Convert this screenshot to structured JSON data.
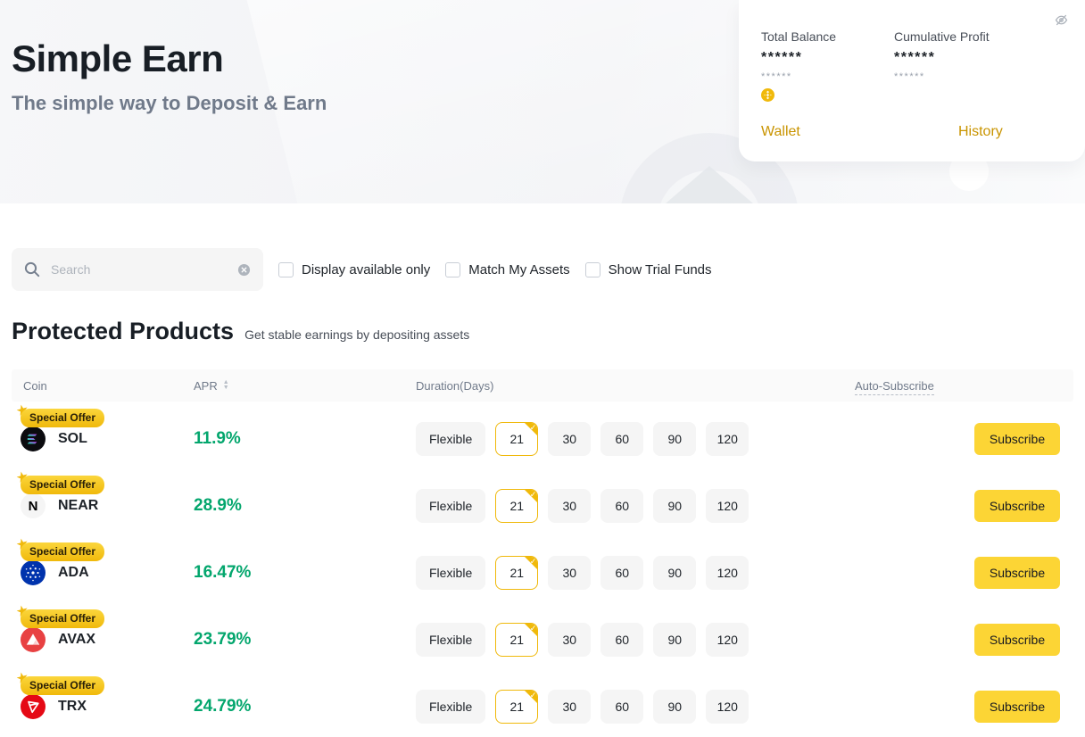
{
  "banner": {
    "title": "Simple Earn",
    "subtitle": "The simple way to Deposit & Earn",
    "card": {
      "total_balance_label": "Total Balance",
      "total_balance_value": "******",
      "total_balance_sub": "******",
      "cumulative_profit_label": "Cumulative Profit",
      "cumulative_profit_value": "******",
      "cumulative_profit_sub": "******",
      "wallet_link": "Wallet",
      "history_link": "History"
    }
  },
  "filters": {
    "search_placeholder": "Search",
    "search_value": "",
    "checkboxes": [
      {
        "label": "Display available only",
        "checked": false
      },
      {
        "label": "Match My Assets",
        "checked": false
      },
      {
        "label": "Show Trial Funds",
        "checked": false
      }
    ]
  },
  "section": {
    "title": "Protected Products",
    "subtitle": "Get stable earnings by depositing assets"
  },
  "table": {
    "headers": {
      "coin": "Coin",
      "apr": "APR",
      "duration": "Duration(Days)",
      "auto_subscribe": "Auto-Subscribe"
    },
    "rows": [
      {
        "badge": "Special Offer",
        "coin": "SOL",
        "apr": "11.9%",
        "durations": [
          "Flexible",
          "21",
          "30",
          "60",
          "90",
          "120"
        ],
        "selected_duration": "21",
        "subscribe_label": "Subscribe"
      },
      {
        "badge": "Special Offer",
        "coin": "NEAR",
        "apr": "28.9%",
        "durations": [
          "Flexible",
          "21",
          "30",
          "60",
          "90",
          "120"
        ],
        "selected_duration": "21",
        "subscribe_label": "Subscribe"
      },
      {
        "badge": "Special Offer",
        "coin": "ADA",
        "apr": "16.47%",
        "durations": [
          "Flexible",
          "21",
          "30",
          "60",
          "90",
          "120"
        ],
        "selected_duration": "21",
        "subscribe_label": "Subscribe"
      },
      {
        "badge": "Special Offer",
        "coin": "AVAX",
        "apr": "23.79%",
        "durations": [
          "Flexible",
          "21",
          "30",
          "60",
          "90",
          "120"
        ],
        "selected_duration": "21",
        "subscribe_label": "Subscribe"
      },
      {
        "badge": "Special Offer",
        "coin": "TRX",
        "apr": "24.79%",
        "durations": [
          "Flexible",
          "21",
          "30",
          "60",
          "90",
          "120"
        ],
        "selected_duration": "21",
        "subscribe_label": "Subscribe"
      }
    ]
  },
  "icons": {
    "star": "★",
    "check": "✓",
    "sort_up": "▲",
    "sort_down": "▼"
  },
  "colors": {
    "accent_yellow": "#FCD535",
    "gold": "#F0B90B",
    "apr_green": "#03A66D",
    "link_gold": "#C99400",
    "text_dark": "#1E2329",
    "text_gray": "#707A8A",
    "input_bg": "#F5F5F5"
  }
}
